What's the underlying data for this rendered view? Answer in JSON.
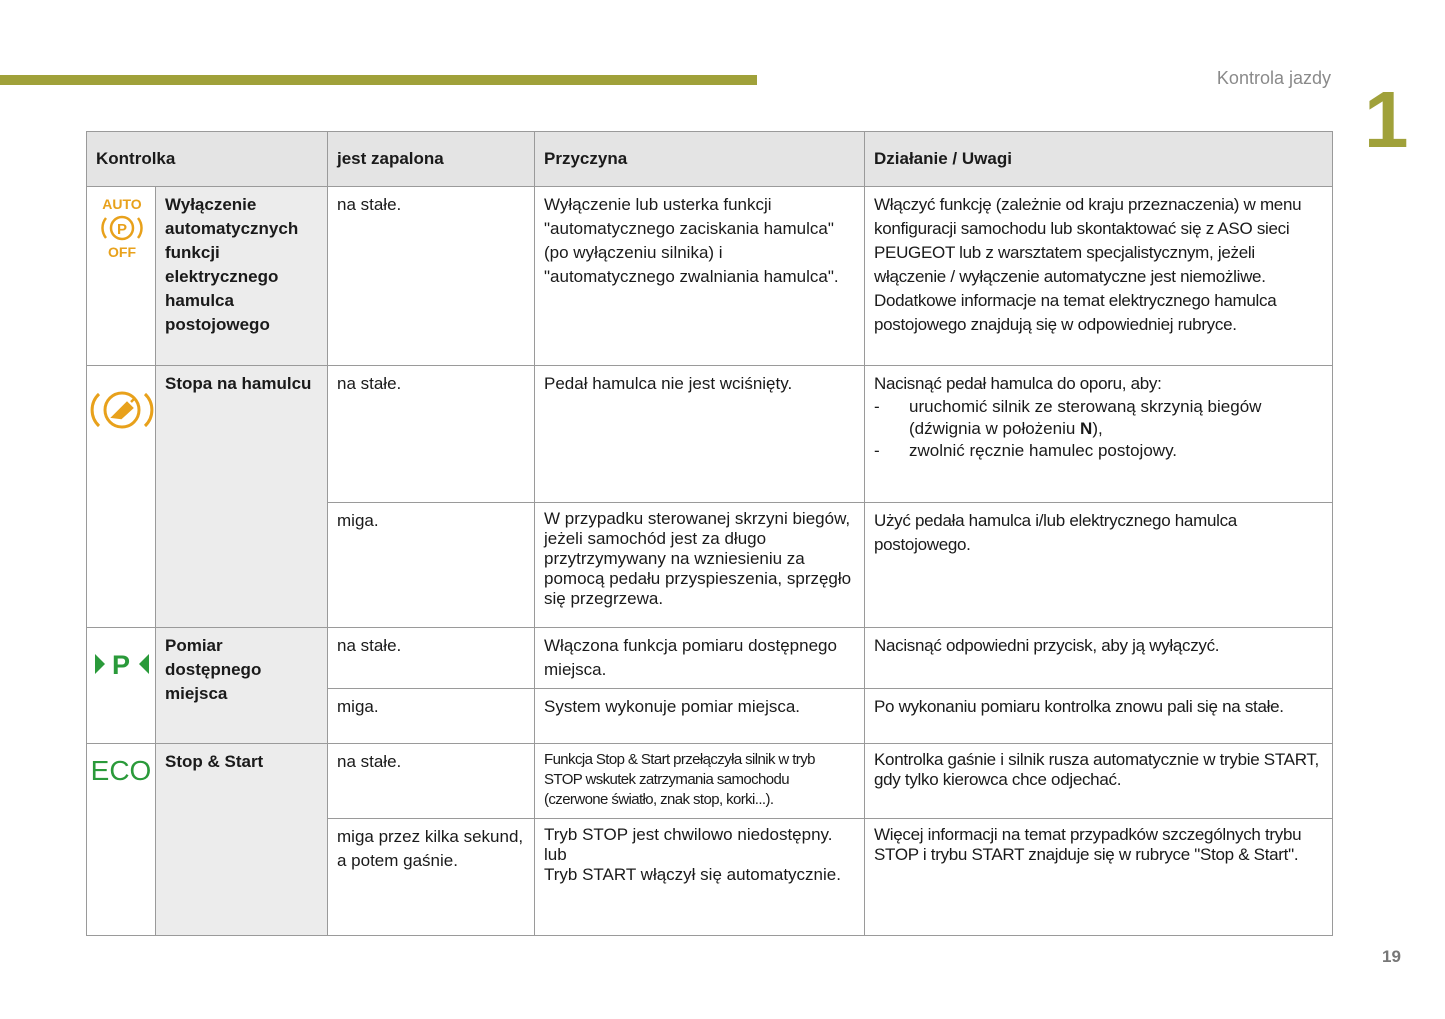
{
  "header": {
    "section": "Kontrola jazdy",
    "chapter": "1"
  },
  "table": {
    "columns": [
      "Kontrolka",
      "jest zapalona",
      "Przyczyna",
      "Działanie / Uwagi"
    ],
    "groups": [
      {
        "icon_text": [
          "AUTO",
          "P",
          "OFF"
        ],
        "name": "Wyłączenie automatycznych funkcji elektrycznego hamulca postojowego",
        "rows": [
          {
            "state": "na stałe.",
            "cause": [
              "Wyłączenie lub usterka funkcji \"automatycznego zaciskania hamulca\" (po wyłączeniu silnika) i \"automatycznego zwalniania hamulca\"."
            ],
            "action": [
              "Włączyć funkcję (zależnie od kraju przeznaczenia) w menu konfiguracji samochodu lub skontaktować się z ASO sieci PEUGEOT lub z warsztatem specjalistycznym, jeżeli włączenie / wyłączenie automatyczne jest niemożliwe.",
              "Dodatkowe informacje na temat elektrycznego hamulca postojowego znajdują się w odpowiedniej rubryce."
            ]
          }
        ]
      },
      {
        "name": "Stopa na hamulcu",
        "rows": [
          {
            "state": "na stałe.",
            "cause": [
              "Pedał hamulca nie jest wciśnięty."
            ],
            "action": [
              "Nacisnąć pedał hamulca do oporu, aby:"
            ],
            "items": [
              {
                "marker": "-",
                "text": "uruchomić silnik ze sterowaną skrzynią biegów (dźwignia w położeniu ",
                "bold": "N",
                "after": "),"
              },
              {
                "marker": "-",
                "text": "zwolnić ręcznie hamulec postojowy."
              }
            ]
          },
          {
            "state": "miga.",
            "cause": [
              "W przypadku sterowanej skrzyni biegów, jeżeli samochód jest za długo przytrzymywany na wzniesieniu za pomocą pedału przyspieszenia, sprzęgło się przegrzewa."
            ],
            "action": [
              "Użyć pedała hamulca i/lub elektrycznego hamulca postojowego."
            ]
          }
        ]
      },
      {
        "icon_text": [
          "P"
        ],
        "name": "Pomiar dostępnego miejsca",
        "rows": [
          {
            "state": "na stałe.",
            "cause": [
              "Włączona funkcja pomiaru dostępnego miejsca."
            ],
            "action": [
              "Nacisnąć odpowiedni przycisk, aby ją wyłączyć."
            ]
          },
          {
            "state": "miga.",
            "cause": [
              "System wykonuje pomiar miejsca."
            ],
            "action": [
              "Po wykonaniu pomiaru kontrolka znowu pali się na stałe."
            ]
          }
        ]
      },
      {
        "icon_text": [
          "ECO"
        ],
        "name": "Stop & Start",
        "rows": [
          {
            "state": "na stałe.",
            "cause": [
              "Funkcja Stop & Start przełączyła silnik w tryb STOP wskutek zatrzymania samochodu (czerwone światło, znak stop, korki...)."
            ],
            "action": [
              "Kontrolka gaśnie i silnik rusza automatycznie w trybie START, gdy tylko kierowca chce odjechać."
            ]
          },
          {
            "state": "miga przez kilka sekund, a potem gaśnie.",
            "cause": [
              "Tryb STOP jest chwilowo niedostępny.",
              "lub",
              "Tryb START włączył się automatycznie."
            ],
            "action": [
              "Więcej informacji na temat przypadków szczególnych trybu STOP i trybu START znajduje się w rubryce \"Stop & Start\"."
            ]
          }
        ]
      }
    ]
  },
  "page_number": "19"
}
